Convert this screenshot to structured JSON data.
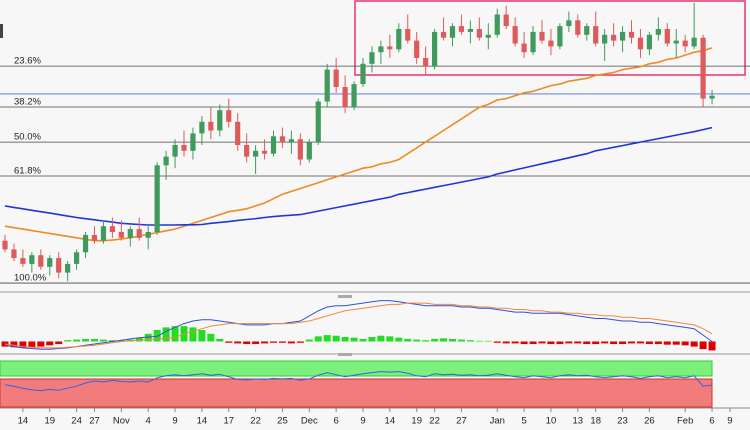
{
  "chart_data": {
    "type": "candlestick",
    "categories": [
      null,
      null,
      "14",
      null,
      null,
      "19",
      null,
      null,
      "24",
      null,
      "27",
      null,
      null,
      "Nov",
      null,
      null,
      "4",
      null,
      null,
      "9",
      null,
      null,
      "14",
      null,
      null,
      "17",
      null,
      null,
      "22",
      null,
      null,
      "25",
      null,
      null,
      "Dec",
      null,
      null,
      "6",
      null,
      null,
      "9",
      null,
      null,
      "14",
      null,
      null,
      "19",
      null,
      "22",
      null,
      null,
      "27",
      null,
      null,
      null,
      "Jan",
      null,
      null,
      "5",
      null,
      null,
      "10",
      null,
      null,
      "13",
      null,
      "18",
      null,
      null,
      "23",
      null,
      null,
      "26",
      null,
      null,
      null,
      "Feb",
      null,
      null,
      "6",
      null,
      "9"
    ],
    "candles": [
      [
        17,
        19,
        13,
        14
      ],
      [
        14,
        16,
        10,
        11
      ],
      [
        11,
        14,
        8,
        9
      ],
      [
        9,
        13,
        6,
        12
      ],
      [
        12,
        14,
        7,
        8
      ],
      [
        8,
        12,
        5,
        11
      ],
      [
        11,
        13,
        4,
        6
      ],
      [
        6,
        10,
        3,
        9
      ],
      [
        9,
        14,
        7,
        13
      ],
      [
        13,
        20,
        11,
        19
      ],
      [
        19,
        22,
        16,
        17
      ],
      [
        17,
        24,
        16,
        22
      ],
      [
        22,
        25,
        18,
        20
      ],
      [
        20,
        24,
        17,
        18
      ],
      [
        18,
        22,
        15,
        21
      ],
      [
        21,
        25,
        17,
        18
      ],
      [
        18,
        22,
        14,
        20
      ],
      [
        20,
        44,
        19,
        43
      ],
      [
        43,
        48,
        38,
        46
      ],
      [
        46,
        52,
        42,
        50
      ],
      [
        50,
        55,
        46,
        48
      ],
      [
        48,
        56,
        45,
        54
      ],
      [
        54,
        60,
        50,
        58
      ],
      [
        58,
        63,
        52,
        55
      ],
      [
        55,
        64,
        53,
        62
      ],
      [
        62,
        66,
        56,
        58
      ],
      [
        58,
        61,
        48,
        50
      ],
      [
        50,
        54,
        44,
        46
      ],
      [
        46,
        50,
        40,
        48
      ],
      [
        48,
        52,
        45,
        47
      ],
      [
        47,
        55,
        46,
        53
      ],
      [
        53,
        56,
        49,
        51
      ],
      [
        51,
        55,
        47,
        52
      ],
      [
        52,
        54,
        43,
        45
      ],
      [
        45,
        52,
        44,
        51
      ],
      [
        51,
        66,
        50,
        65
      ],
      [
        65,
        78,
        63,
        76
      ],
      [
        76,
        80,
        68,
        70
      ],
      [
        70,
        74,
        61,
        63
      ],
      [
        63,
        72,
        62,
        71
      ],
      [
        71,
        80,
        70,
        78
      ],
      [
        78,
        84,
        75,
        82
      ],
      [
        82,
        86,
        78,
        84
      ],
      [
        84,
        88,
        80,
        83
      ],
      [
        83,
        92,
        82,
        90
      ],
      [
        90,
        95,
        85,
        86
      ],
      [
        86,
        89,
        78,
        80
      ],
      [
        80,
        84,
        74,
        77
      ],
      [
        77,
        90,
        76,
        89
      ],
      [
        89,
        94,
        86,
        87
      ],
      [
        87,
        92,
        84,
        91
      ],
      [
        91,
        95,
        88,
        89
      ],
      [
        89,
        93,
        85,
        90
      ],
      [
        90,
        94,
        86,
        87
      ],
      [
        87,
        92,
        83,
        88
      ],
      [
        88,
        97,
        87,
        95
      ],
      [
        95,
        98,
        90,
        91
      ],
      [
        91,
        94,
        84,
        85
      ],
      [
        85,
        89,
        80,
        82
      ],
      [
        82,
        91,
        81,
        89
      ],
      [
        89,
        93,
        85,
        86
      ],
      [
        86,
        90,
        81,
        84
      ],
      [
        84,
        92,
        83,
        91
      ],
      [
        91,
        96,
        89,
        93
      ],
      [
        93,
        95,
        87,
        88
      ],
      [
        88,
        92,
        86,
        91
      ],
      [
        91,
        96,
        84,
        85
      ],
      [
        85,
        90,
        79,
        88
      ],
      [
        88,
        92,
        84,
        86
      ],
      [
        86,
        91,
        82,
        89
      ],
      [
        89,
        93,
        85,
        87
      ],
      [
        87,
        90,
        80,
        83
      ],
      [
        83,
        89,
        81,
        88
      ],
      [
        88,
        94,
        86,
        90
      ],
      [
        90,
        92,
        84,
        85
      ],
      [
        85,
        90,
        80,
        86
      ],
      [
        86,
        88,
        82,
        84
      ],
      [
        84,
        99,
        83,
        87
      ],
      [
        87,
        88,
        63,
        66
      ],
      [
        66,
        69,
        64,
        67
      ],
      null,
      null
    ],
    "up_color": "#3f9a5c",
    "down_color": "#de5b5b",
    "ylim": [
      0,
      100
    ],
    "levels": [
      {
        "value": 77.2,
        "label": "23.6%"
      },
      {
        "value": 63.1,
        "label": "38.2%"
      },
      {
        "value": 51.0,
        "label": "50.0%"
      },
      {
        "value": 39.3,
        "label": "61.8%"
      },
      {
        "value": 2.4,
        "label": "100.0%"
      }
    ],
    "price_line": 67.6,
    "ma": [
      {
        "color": "#f08a24",
        "values": [
          22,
          21.5,
          21,
          20.5,
          20,
          19.5,
          19,
          18.5,
          18,
          17.5,
          17,
          17,
          17.2,
          17.6,
          18,
          18.6,
          19.2,
          19.8,
          20.4,
          21,
          22,
          23,
          24,
          25,
          26,
          27,
          27.5,
          28,
          29,
          30,
          31.5,
          33,
          34,
          35,
          36,
          37,
          38,
          39,
          40,
          41,
          42,
          42.5,
          43.5,
          44,
          45,
          47,
          49,
          51,
          53,
          55,
          57,
          59,
          61,
          63,
          64,
          65.5,
          66,
          67,
          68,
          68.5,
          69.5,
          70.5,
          71,
          72,
          72.5,
          73,
          74,
          74.5,
          75,
          76,
          76.5,
          77,
          78,
          78.5,
          79.5,
          80,
          81,
          82,
          82.5,
          83.5,
          null,
          null
        ]
      },
      {
        "color": "#1f36d8",
        "values": [
          29,
          28.5,
          28,
          27.5,
          27,
          26.5,
          26,
          25.5,
          25,
          24.6,
          24.2,
          23.8,
          23.4,
          23,
          22.8,
          22.6,
          22.4,
          22.4,
          22.4,
          22.4,
          22.5,
          22.5,
          22.6,
          23,
          23.3,
          23.6,
          24,
          24.3,
          24.6,
          25,
          25.3,
          25.6,
          25.8,
          26,
          26.6,
          27.2,
          27.8,
          28.4,
          29,
          29.6,
          30.2,
          30.8,
          31.4,
          32,
          33,
          33.6,
          34.2,
          34.8,
          35.4,
          36,
          36.6,
          37.2,
          37.8,
          38.4,
          39,
          40,
          40.7,
          41.4,
          42.1,
          42.8,
          43.5,
          44.2,
          44.9,
          45.6,
          46.3,
          47,
          48,
          48.6,
          49.2,
          49.8,
          50.4,
          51,
          51.6,
          52.2,
          52.8,
          53.4,
          54,
          54.6,
          55.3,
          56,
          null,
          null
        ]
      }
    ],
    "macd": {
      "ylim": [
        -0.9,
        3.4
      ],
      "hist_up_color": "#22dd22",
      "hist_down_color": "#e00000",
      "histogram": [
        -0.4,
        -0.45,
        -0.5,
        -0.45,
        -0.4,
        -0.3,
        -0.2,
        0.1,
        0.15,
        0.2,
        0.2,
        0.15,
        0.1,
        0.1,
        0.15,
        0.3,
        0.6,
        0.9,
        1.1,
        1.2,
        1.2,
        1.1,
        0.9,
        0.6,
        0.2,
        -0.1,
        -0.15,
        -0.2,
        -0.2,
        -0.15,
        -0.1,
        -0.1,
        -0.15,
        -0.1,
        0.15,
        0.4,
        0.5,
        0.45,
        0.35,
        0.3,
        0.2,
        0.35,
        0.45,
        0.4,
        0.3,
        0.2,
        0.15,
        0.1,
        0.2,
        0.25,
        0.2,
        0.15,
        0.1,
        0.05,
        0.05,
        -0.1,
        -0.15,
        -0.15,
        -0.2,
        -0.2,
        -0.15,
        -0.2,
        -0.2,
        -0.15,
        -0.15,
        -0.2,
        -0.2,
        -0.15,
        -0.2,
        -0.2,
        -0.15,
        -0.15,
        -0.2,
        -0.2,
        -0.25,
        -0.25,
        -0.3,
        -0.4,
        -0.6,
        -0.7,
        null,
        null
      ],
      "macd_color": "#3050e0",
      "macd": [
        -0.3,
        -0.4,
        -0.5,
        -0.55,
        -0.6,
        -0.6,
        -0.55,
        -0.5,
        -0.4,
        -0.3,
        -0.2,
        -0.1,
        0,
        0.1,
        0.2,
        0.3,
        0.35,
        0.4,
        0.8,
        1.1,
        1.4,
        1.6,
        1.7,
        1.7,
        1.6,
        1.5,
        1.4,
        1.3,
        1.3,
        1.3,
        1.4,
        1.4,
        1.5,
        1.6,
        2,
        2.4,
        2.7,
        2.8,
        2.8,
        2.9,
        3,
        3.1,
        3.2,
        3.2,
        3.1,
        3,
        2.9,
        2.8,
        2.8,
        2.8,
        2.8,
        2.7,
        2.7,
        2.6,
        2.6,
        2.5,
        2.4,
        2.3,
        2.3,
        2.2,
        2.2,
        2.2,
        2.2,
        2.1,
        2,
        1.9,
        1.8,
        1.8,
        1.7,
        1.6,
        1.6,
        1.5,
        1.5,
        1.4,
        1.3,
        1.2,
        1.1,
        1,
        0.5,
        0,
        null,
        null
      ],
      "signal_color": "#f0883a",
      "signal": [
        -0.2,
        -0.3,
        -0.4,
        -0.45,
        -0.5,
        -0.5,
        -0.5,
        -0.45,
        -0.4,
        -0.35,
        -0.3,
        -0.2,
        -0.1,
        0,
        0.05,
        0.1,
        0.15,
        0.2,
        0.25,
        0.3,
        0.6,
        0.8,
        1,
        1.2,
        1.3,
        1.4,
        1.4,
        1.4,
        1.4,
        1.4,
        1.4,
        1.4,
        1.4,
        1.5,
        1.6,
        1.8,
        2,
        2.2,
        2.4,
        2.5,
        2.6,
        2.7,
        2.8,
        2.9,
        2.9,
        3,
        3,
        3,
        2.9,
        2.9,
        2.9,
        2.8,
        2.8,
        2.7,
        2.7,
        2.6,
        2.6,
        2.5,
        2.5,
        2.4,
        2.4,
        2.3,
        2.3,
        2.2,
        2.2,
        2.1,
        2.1,
        2,
        2,
        1.9,
        1.9,
        1.8,
        1.8,
        1.7,
        1.6,
        1.5,
        1.4,
        1.3,
        1,
        0.6,
        null,
        null
      ]
    },
    "rsi": {
      "ylim": [
        0,
        100
      ],
      "color": "#3a5fe0",
      "values": [
        45,
        42,
        38,
        35,
        33,
        36,
        34,
        38,
        42,
        48,
        52,
        50,
        53,
        51,
        50,
        52,
        50,
        58,
        62,
        64,
        62,
        64,
        66,
        63,
        65,
        60,
        55,
        54,
        56,
        55,
        57,
        56,
        57,
        53,
        56,
        63,
        68,
        64,
        60,
        63,
        66,
        68,
        70,
        69,
        70,
        67,
        62,
        60,
        66,
        64,
        65,
        63,
        64,
        62,
        63,
        66,
        63,
        60,
        58,
        62,
        60,
        58,
        62,
        64,
        62,
        63,
        60,
        58,
        60,
        62,
        60,
        57,
        60,
        62,
        58,
        60,
        58,
        62,
        42,
        44,
        null,
        null
      ]
    }
  }
}
